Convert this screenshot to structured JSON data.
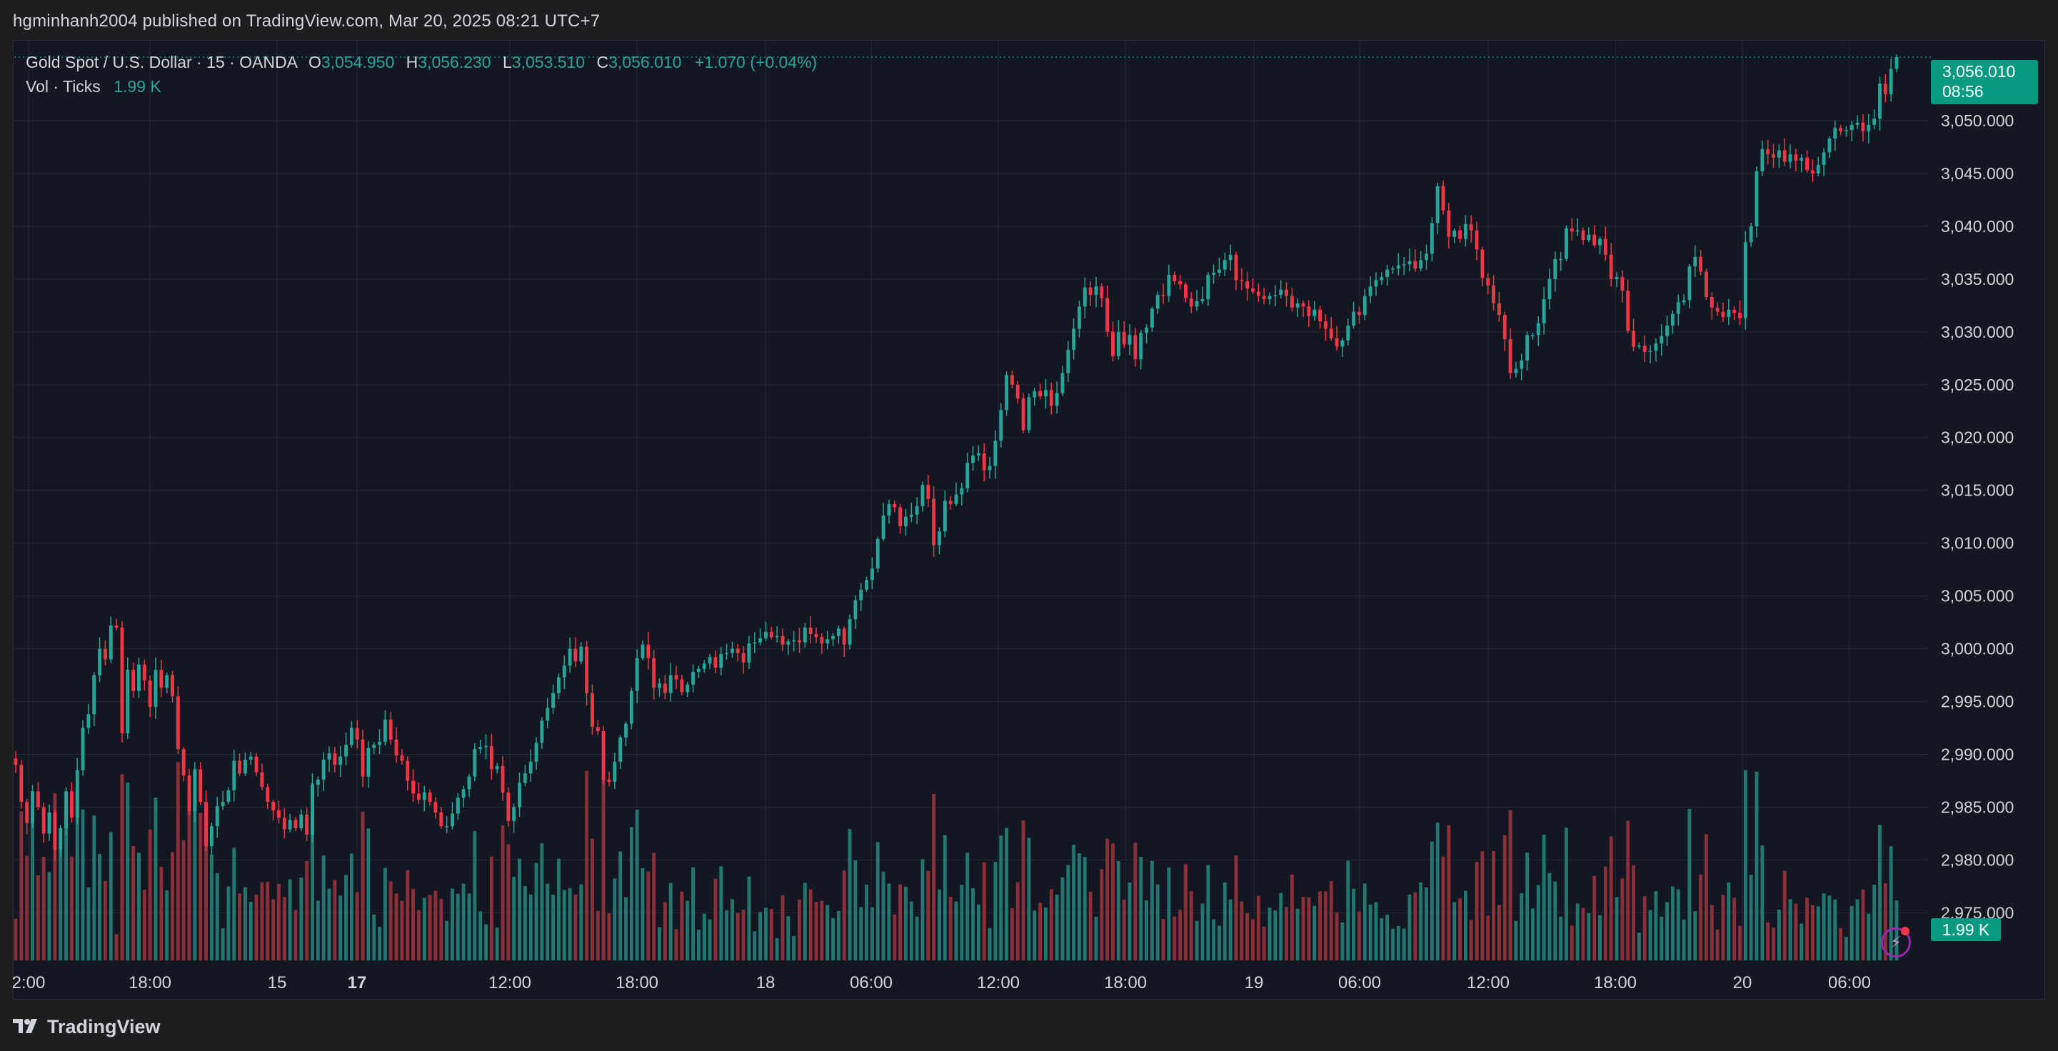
{
  "header": {
    "published_text": "hgminhanh2004 published on TradingView.com, Mar 20, 2025 08:21 UTC+7"
  },
  "legend": {
    "symbol": "Gold Spot / U.S. Dollar · 15 · OANDA",
    "o_label": "O",
    "o_value": "3,054.950",
    "h_label": "H",
    "h_value": "3,056.230",
    "l_label": "L",
    "l_value": "3,053.510",
    "c_label": "C",
    "c_value": "3,056.010",
    "change": "+1.070 (+0.04%)",
    "vol_label": "Vol · Ticks",
    "vol_value": "1.99 K"
  },
  "price_label": {
    "price": "3,056.010",
    "countdown": "08:56"
  },
  "volume_label": "1.99 K",
  "footer": {
    "brand": "TradingView",
    "logo_icon": "tradingview-logo-icon"
  },
  "alert_icon": "lightning-bolt-icon",
  "colors": {
    "up": "#26a69a",
    "down": "#f23645",
    "up_volume": "#22786f",
    "down_volume": "#8c2f39",
    "background": "#131722",
    "grid": "#242936",
    "text": "#d1d4dc",
    "price_label_bg": "#089981"
  },
  "chart_data": {
    "type": "candlestick",
    "symbol": "Gold Spot / U.S. Dollar",
    "interval": "15",
    "exchange": "OANDA",
    "y_axis_ticks": [
      "3,050.000",
      "3,045.000",
      "3,040.000",
      "3,035.000",
      "3,030.000",
      "3,025.000",
      "3,020.000",
      "3,015.000",
      "3,010.000",
      "3,005.000",
      "3,000.000",
      "2,995.000",
      "2,990.000",
      "2,985.000",
      "2,980.000",
      "2,975.000"
    ],
    "y_axis_values": [
      3050,
      3045,
      3040,
      3035,
      3030,
      3025,
      3020,
      3015,
      3010,
      3005,
      3000,
      2995,
      2990,
      2985,
      2980,
      2975
    ],
    "x_axis_ticks": [
      {
        "label": "2:00",
        "bold": false
      },
      {
        "label": "18:00",
        "bold": false
      },
      {
        "label": "15",
        "bold": false
      },
      {
        "label": "17",
        "bold": true
      },
      {
        "label": "12:00",
        "bold": false
      },
      {
        "label": "18:00",
        "bold": false
      },
      {
        "label": "18",
        "bold": false
      },
      {
        "label": "06:00",
        "bold": false
      },
      {
        "label": "12:00",
        "bold": false
      },
      {
        "label": "18:00",
        "bold": false
      },
      {
        "label": "19",
        "bold": false
      },
      {
        "label": "06:00",
        "bold": false
      },
      {
        "label": "12:00",
        "bold": false
      },
      {
        "label": "18:00",
        "bold": false
      },
      {
        "label": "20",
        "bold": false
      },
      {
        "label": "06:00",
        "bold": false
      }
    ],
    "ylim": [
      2970.5,
      3057.5
    ],
    "last_price": 3056.01,
    "closes": [
      2989.0,
      2985.5,
      2983.5,
      2986.5,
      2985.0,
      2982.5,
      2984.5,
      2981.0,
      2983.0,
      2986.5,
      2984.0,
      2988.5,
      2992.5,
      2993.8,
      2997.5,
      3000.0,
      2999.0,
      3002.2,
      3002.0,
      2992.0,
      2998.0,
      2996.0,
      2998.5,
      2997.0,
      2994.5,
      2998.0,
      2996.3,
      2997.5,
      2995.5,
      2990.5,
      2988.0,
      2984.6,
      2988.6,
      2985.5,
      2981.3,
      2983.2,
      2985.1,
      2985.5,
      2986.6,
      2989.4,
      2988.2,
      2989.5,
      2989.8,
      2988.3,
      2986.9,
      2985.5,
      2984.7,
      2984.0,
      2982.9,
      2983.8,
      2983.0,
      2984.3,
      2982.4,
      2987.1,
      2987.6,
      2989.5,
      2990.1,
      2989.0,
      2989.8,
      2990.9,
      2992.5,
      2991.4,
      2987.9,
      2990.6,
      2990.9,
      2991.2,
      2993.3,
      2991.4,
      2989.9,
      2989.4,
      2987.5,
      2986.3,
      2985.7,
      2986.4,
      2985.5,
      2984.5,
      2983.2,
      2983.2,
      2984.4,
      2985.9,
      2986.7,
      2987.9,
      2990.5,
      2990.7,
      2990.8,
      2988.6,
      2988.9,
      2986.4,
      2983.7,
      2985.0,
      2987.3,
      2988.2,
      2989.3,
      2991.1,
      2993.2,
      2994.4,
      2995.8,
      2997.3,
      2998.4,
      3000.0,
      2998.8,
      3000.2,
      2995.8,
      2992.6,
      2992.2,
      2987.6,
      2987.4,
      2989.3,
      2991.6,
      2992.9,
      2996.0,
      2999.1,
      3000.4,
      2999.1,
      2996.3,
      2996.7,
      2995.8,
      2997.5,
      2997.1,
      2995.9,
      2996.6,
      2997.8,
      2998.1,
      2998.6,
      2999.2,
      2998.2,
      2999.5,
      2999.6,
      3000.0,
      2999.6,
      2998.7,
      3000.5,
      3000.6,
      3001.0,
      3001.6,
      3001.1,
      3001.2,
      3000.4,
      3000.7,
      3000.8,
      3000.6,
      3002.0,
      3001.4,
      3001.1,
      3000.5,
      3000.9,
      3001.2,
      3001.9,
      3000.4,
      3002.8,
      3004.6,
      3005.6,
      3006.5,
      3007.6,
      3010.4,
      3012.6,
      3013.7,
      3013.4,
      3011.6,
      3012.5,
      3012.7,
      3013.5,
      3015.5,
      3014.2,
      3009.8,
      3011.1,
      3014.0,
      3013.7,
      3014.6,
      3015.2,
      3017.6,
      3018.3,
      3018.5,
      3016.9,
      3017.3,
      3019.7,
      3022.6,
      3025.9,
      3025.0,
      3023.7,
      3020.7,
      3023.8,
      3024.4,
      3023.9,
      3024.5,
      3023.0,
      3024.2,
      3026.1,
      3028.3,
      3030.3,
      3032.4,
      3034.2,
      3033.5,
      3034.3,
      3033.2,
      3030.0,
      3027.7,
      3030.0,
      3028.8,
      3029.7,
      3027.4,
      3029.9,
      3030.4,
      3032.2,
      3033.5,
      3033.4,
      3035.4,
      3034.8,
      3034.5,
      3033.2,
      3032.4,
      3032.9,
      3033.1,
      3035.4,
      3035.6,
      3035.9,
      3036.8,
      3037.3,
      3034.9,
      3034.8,
      3034.1,
      3033.8,
      3033.4,
      3033.1,
      3033.4,
      3033.5,
      3034.0,
      3033.4,
      3032.3,
      3032.7,
      3032.4,
      3031.5,
      3032.1,
      3031.0,
      3030.3,
      3029.4,
      3028.6,
      3029.2,
      3030.6,
      3031.9,
      3031.6,
      3033.4,
      3034.3,
      3034.9,
      3035.2,
      3035.9,
      3036.0,
      3036.3,
      3036.4,
      3036.7,
      3036.0,
      3036.8,
      3037.4,
      3040.3,
      3043.8,
      3041.5,
      3039.0,
      3039.6,
      3038.8,
      3040.2,
      3039.6,
      3037.8,
      3035.1,
      3034.4,
      3032.7,
      3031.6,
      3029.3,
      3026.1,
      3026.5,
      3027.3,
      3029.7,
      3029.7,
      3030.8,
      3033.1,
      3035.0,
      3036.9,
      3036.9,
      3039.8,
      3039.5,
      3039.6,
      3038.7,
      3039.2,
      3038.2,
      3038.8,
      3037.3,
      3035.0,
      3035.2,
      3033.9,
      3030.1,
      3028.6,
      3028.7,
      3028.1,
      3028.2,
      3028.9,
      3029.6,
      3030.6,
      3031.7,
      3032.8,
      3033.0,
      3036.2,
      3037.1,
      3035.7,
      3033.3,
      3032.3,
      3031.9,
      3031.4,
      3032.1,
      3031.8,
      3031.3,
      3038.5,
      3040.0,
      3045.2,
      3047.3,
      3046.8,
      3046.5,
      3047.2,
      3046.1,
      3046.8,
      3046.2,
      3046.5,
      3045.3,
      3045.0,
      3045.8,
      3047.0,
      3048.3,
      3049.3,
      3049.0,
      3049.1,
      3049.6,
      3049.8,
      3049.0,
      3049.6,
      3050.2,
      3053.5,
      3052.5,
      3054.9,
      3056.0
    ],
    "volumes_scale_max_ticks": 2390,
    "last_volume_ticks": 1990
  }
}
